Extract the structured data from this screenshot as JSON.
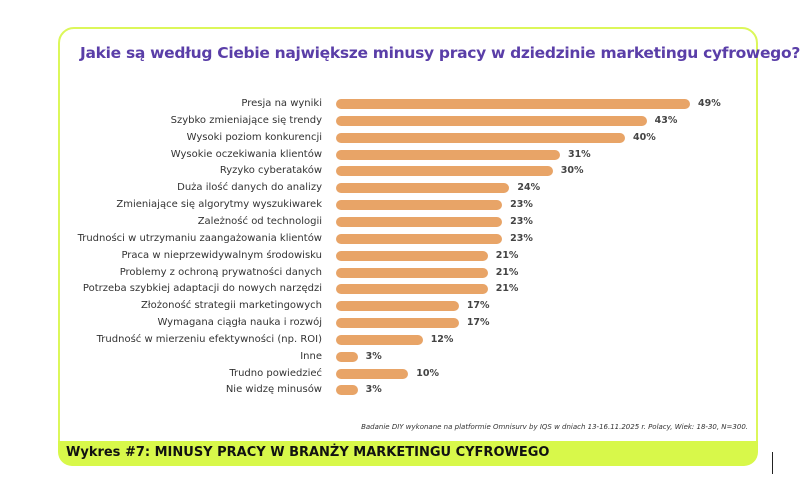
{
  "chart_data": {
    "type": "bar",
    "orientation": "horizontal",
    "title": "Jakie są według Ciebie największe minusy pracy w dziedzinie marketingu cyfrowego?",
    "categories": [
      "Presja na wyniki",
      "Szybko zmieniające się trendy",
      "Wysoki poziom konkurencji",
      "Wysokie oczekiwania klientów",
      "Ryzyko cyberataków",
      "Duża ilość danych do analizy",
      "Zmieniające się algorytmy wyszukiwarek",
      "Zależność od technologii",
      "Trudności w utrzymaniu zaangażowania klientów",
      "Praca w nieprzewidywalnym środowisku",
      "Problemy z ochroną prywatności danych",
      "Potrzeba szybkiej adaptacji do nowych narzędzi",
      "Złożoność strategii marketingowych",
      "Wymagana ciągła nauka i rozwój",
      "Trudność w mierzeniu efektywności (np. ROI)",
      "Inne",
      "Trudno powiedzieć",
      "Nie widzę minusów"
    ],
    "values": [
      49,
      43,
      40,
      31,
      30,
      24,
      23,
      23,
      23,
      21,
      21,
      21,
      17,
      17,
      12,
      3,
      10,
      3
    ],
    "value_labels": [
      "49%",
      "43%",
      "40%",
      "31%",
      "30%",
      "24%",
      "23%",
      "23%",
      "23%",
      "21%",
      "21%",
      "21%",
      "17%",
      "17%",
      "12%",
      "3%",
      "10%",
      "3%"
    ],
    "unit": "%",
    "xlim": [
      0,
      49
    ],
    "grid": false,
    "bar_color": "#e8a467"
  },
  "note": "Badanie DIY wykonane na platformie Omnisurv by IQS w dniach 13-16.11.2025 r.  Polacy, Wiek: 18-30, N=300.",
  "footer": "Wykres #7: MINUSY PRACY W BRANŻY MARKETINGU CYFROWEGO",
  "colors": {
    "title": "#5a3ea8",
    "accent_green": "#d8f84a",
    "bar": "#e8a467"
  }
}
